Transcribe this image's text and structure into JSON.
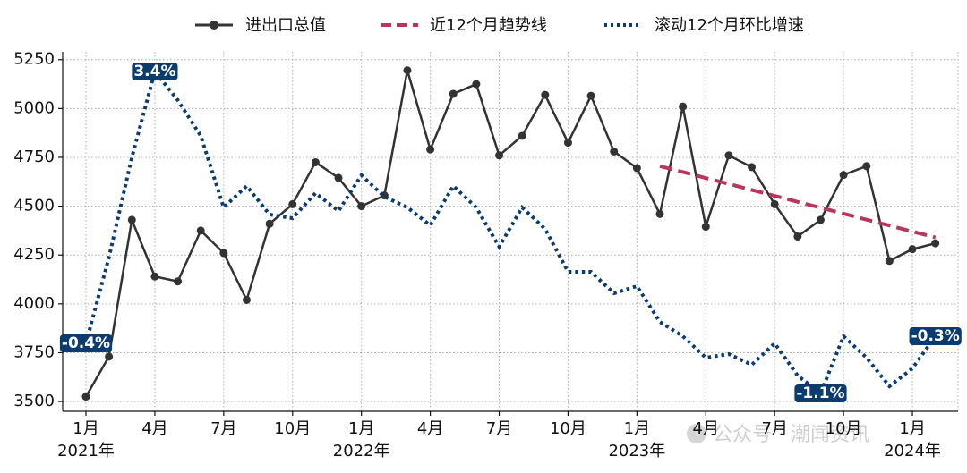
{
  "chart_data": {
    "type": "line",
    "categories": [
      "1月",
      null,
      null,
      "4月",
      null,
      null,
      "7月",
      null,
      null,
      "10月",
      null,
      null,
      "1月",
      null,
      null,
      "4月",
      null,
      null,
      "7月",
      null,
      null,
      "10月",
      null,
      null,
      "1月",
      null,
      null,
      "4月",
      null,
      null,
      "7月",
      null,
      null,
      "10月",
      null,
      null,
      "1月",
      null
    ],
    "year_row": [
      "2021年",
      null,
      null,
      null,
      null,
      null,
      null,
      null,
      null,
      null,
      null,
      null,
      "2022年",
      null,
      null,
      null,
      null,
      null,
      null,
      null,
      null,
      null,
      null,
      null,
      "2023年",
      null,
      null,
      null,
      null,
      null,
      null,
      null,
      null,
      null,
      null,
      null,
      "2024年",
      null
    ],
    "series": [
      {
        "name": "进出口总值",
        "color": "#333333",
        "style": "solid",
        "marker": true,
        "values": [
          3525,
          3730,
          4430,
          4140,
          4115,
          4375,
          4260,
          4020,
          4410,
          4510,
          4725,
          4645,
          4500,
          4555,
          5195,
          4790,
          5075,
          5125,
          4760,
          4860,
          5070,
          4825,
          5065,
          4780,
          4695,
          4460,
          5010,
          4395,
          4760,
          4700,
          4510,
          4345,
          4430,
          4660,
          4705,
          4220,
          4280,
          4310
        ]
      },
      {
        "name": "近12个月趋势线",
        "color": "#b8365a",
        "style": "dashed",
        "marker": false,
        "values": [
          null,
          null,
          null,
          null,
          null,
          null,
          null,
          null,
          null,
          null,
          null,
          null,
          null,
          null,
          null,
          null,
          null,
          null,
          null,
          null,
          null,
          null,
          null,
          null,
          null,
          4705,
          4675,
          4644,
          4614,
          4583,
          4553,
          4522,
          4492,
          4462,
          4431,
          4401,
          4370,
          4340
        ]
      },
      {
        "name": "滚动12个月环比增速",
        "color": "#0b3c6f",
        "style": "dotted",
        "marker": false,
        "axis": "y2",
        "values": [
          -0.4,
          0.8,
          2.2,
          3.4,
          3.0,
          2.5,
          1.5,
          1.8,
          1.4,
          1.35,
          1.7,
          1.45,
          1.95,
          1.65,
          1.5,
          1.25,
          1.8,
          1.5,
          0.95,
          1.5,
          1.2,
          0.6,
          0.6,
          0.3,
          0.4,
          -0.1,
          -0.3,
          -0.6,
          -0.55,
          -0.7,
          -0.4,
          -0.85,
          -1.1,
          -0.3,
          -0.6,
          -1.0,
          -0.75,
          -0.3
        ],
        "value_labels": [
          "-0.4%",
          null,
          null,
          "3.4%",
          null,
          null,
          null,
          null,
          null,
          null,
          null,
          null,
          null,
          null,
          null,
          null,
          null,
          null,
          null,
          null,
          null,
          null,
          null,
          null,
          null,
          null,
          null,
          null,
          null,
          null,
          null,
          null,
          "-1.1%",
          null,
          null,
          null,
          null,
          "-0.3%"
        ]
      }
    ],
    "ylim": [
      3450,
      5290
    ],
    "yticks": [
      3500,
      3750,
      4000,
      4250,
      4500,
      4750,
      5000,
      5250
    ],
    "y2lim": [
      -1.35,
      3.675
    ],
    "grid": true,
    "legend": "top",
    "watermark": "公众号 · 潮闻资讯"
  }
}
